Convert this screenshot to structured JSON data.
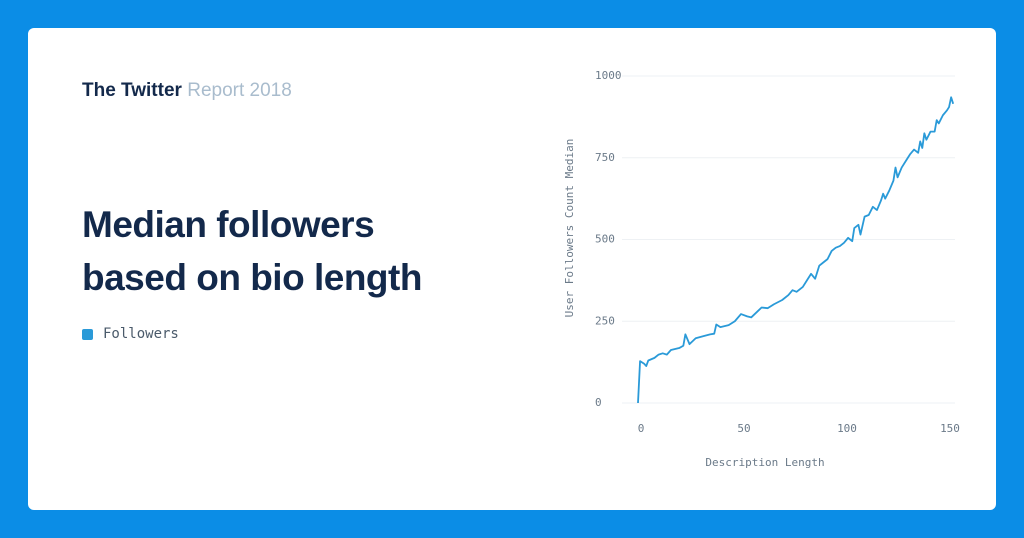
{
  "header": {
    "brand": "The Twitter",
    "report": "Report 2018"
  },
  "chart_data": {
    "type": "line",
    "title": "Median followers based on bio length",
    "x_label": "Description Length",
    "y_label": "User Followers Count Median",
    "xlim": [
      0,
      155
    ],
    "xticks": [
      0,
      50,
      100,
      150
    ],
    "ylim": [
      0,
      1000
    ],
    "yticks": [
      0,
      250,
      500,
      750,
      1000
    ],
    "grid": true,
    "x": [
      0,
      1,
      3,
      4,
      5,
      8,
      10,
      12,
      14,
      16,
      20,
      22,
      23,
      25,
      28,
      32,
      35,
      37,
      38,
      40,
      44,
      47,
      50,
      53,
      55,
      58,
      60,
      63,
      66,
      70,
      73,
      75,
      77,
      80,
      82,
      84,
      86,
      88,
      90,
      92,
      94,
      96,
      98,
      100,
      102,
      104,
      105,
      107,
      108,
      110,
      112,
      114,
      116,
      118,
      119,
      120,
      122,
      124,
      125,
      126,
      128,
      130,
      132,
      134,
      136,
      137,
      138,
      139,
      140,
      142,
      144,
      145,
      146,
      148,
      150,
      151,
      152,
      153
    ],
    "series": [
      {
        "name": "Followers",
        "color": "#2a9ad8",
        "values": [
          0,
          128,
          120,
          113,
          130,
          138,
          148,
          152,
          148,
          162,
          168,
          175,
          210,
          180,
          198,
          205,
          210,
          212,
          240,
          232,
          238,
          250,
          272,
          265,
          262,
          280,
          292,
          290,
          302,
          315,
          330,
          345,
          340,
          355,
          375,
          395,
          380,
          420,
          430,
          440,
          465,
          475,
          480,
          490,
          505,
          495,
          535,
          545,
          515,
          570,
          575,
          600,
          590,
          620,
          640,
          625,
          650,
          680,
          720,
          690,
          720,
          740,
          760,
          775,
          765,
          800,
          780,
          825,
          805,
          830,
          830,
          865,
          855,
          880,
          895,
          905,
          935,
          915
        ]
      }
    ]
  }
}
